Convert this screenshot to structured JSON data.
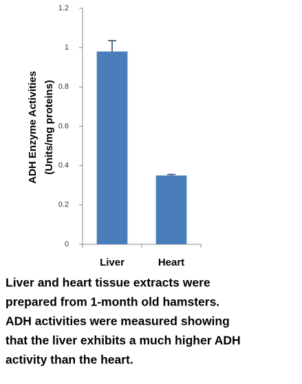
{
  "chart_data": {
    "type": "bar",
    "ylabel": [
      "ADH Enzyme Activities",
      "(Units/mg proteins)"
    ],
    "categories": [
      "Liver",
      "Heart"
    ],
    "values": [
      0.98,
      0.35
    ],
    "errors": [
      0.055,
      0.005
    ],
    "color": "#4a7ebb",
    "ylim": [
      0,
      1.2
    ],
    "yticks": [
      0,
      0.2,
      0.4,
      0.6,
      0.8,
      1,
      1.2
    ],
    "caption": [
      "Liver and heart tissue extracts were",
      "prepared from 1-month old hamsters.",
      "ADH activities were measured showing",
      "that the liver exhibits a much higher ADH",
      "activity than the heart."
    ]
  }
}
